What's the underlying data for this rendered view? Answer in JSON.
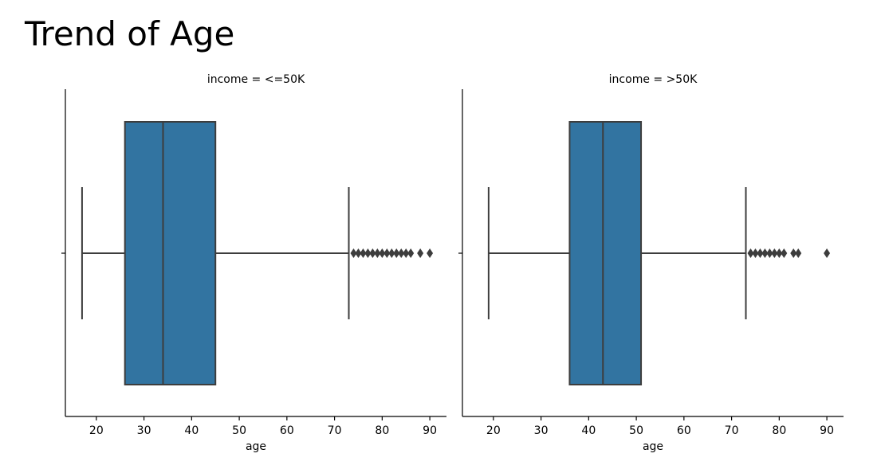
{
  "title": "Trend of Age",
  "chart_data": [
    {
      "type": "boxplot",
      "subtitle": "income = <=50K",
      "xlabel": "age",
      "xlim": [
        13.5,
        93.5
      ],
      "xticks": [
        20,
        30,
        40,
        50,
        60,
        70,
        80,
        90
      ],
      "box": {
        "whisker_low": 17,
        "q1": 26,
        "median": 34,
        "q3": 45,
        "whisker_high": 73
      },
      "outliers": [
        74,
        75,
        76,
        77,
        78,
        79,
        80,
        81,
        82,
        83,
        84,
        85,
        86,
        88,
        90
      ],
      "color": "#3274a1",
      "line_color": "#3d3d3d"
    },
    {
      "type": "boxplot",
      "subtitle": "income = >50K",
      "xlabel": "age",
      "xlim": [
        13.5,
        93.5
      ],
      "xticks": [
        20,
        30,
        40,
        50,
        60,
        70,
        80,
        90
      ],
      "box": {
        "whisker_low": 19,
        "q1": 36,
        "median": 43,
        "q3": 51,
        "whisker_high": 73
      },
      "outliers": [
        74,
        75,
        76,
        77,
        78,
        79,
        80,
        81,
        83,
        84,
        90
      ],
      "color": "#3274a1",
      "line_color": "#3d3d3d"
    }
  ]
}
